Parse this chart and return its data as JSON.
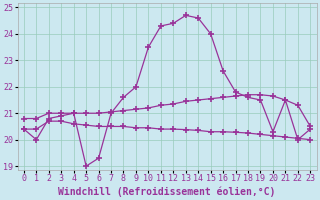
{
  "xlabel": "Windchill (Refroidissement éolien,°C)",
  "background_color": "#cce8f0",
  "grid_color": "#99ccbb",
  "line_color": "#993399",
  "xlim": [
    -0.5,
    23.5
  ],
  "ylim": [
    18.85,
    25.15
  ],
  "yticks": [
    19,
    20,
    21,
    22,
    23,
    24,
    25
  ],
  "xticks": [
    0,
    1,
    2,
    3,
    4,
    5,
    6,
    7,
    8,
    9,
    10,
    11,
    12,
    13,
    14,
    15,
    16,
    17,
    18,
    19,
    20,
    21,
    22,
    23
  ],
  "series1_x": [
    0,
    1,
    2,
    3,
    4,
    5,
    6,
    7,
    8,
    9,
    10,
    11,
    12,
    13,
    14,
    15,
    16,
    17,
    18,
    19,
    20,
    21,
    22,
    23
  ],
  "series1_y": [
    20.4,
    20.0,
    20.8,
    20.9,
    21.0,
    19.0,
    19.3,
    21.0,
    21.6,
    22.0,
    23.5,
    24.3,
    24.4,
    24.7,
    24.6,
    24.0,
    22.6,
    21.8,
    21.6,
    21.5,
    20.3,
    21.5,
    20.0,
    20.4
  ],
  "series2_x": [
    0,
    1,
    2,
    3,
    4,
    5,
    6,
    7,
    8,
    9,
    10,
    11,
    12,
    13,
    14,
    15,
    16,
    17,
    18,
    19,
    20,
    21,
    22,
    23
  ],
  "series2_y": [
    20.8,
    20.8,
    21.0,
    21.0,
    21.0,
    21.0,
    21.0,
    21.05,
    21.1,
    21.15,
    21.2,
    21.3,
    21.35,
    21.45,
    21.5,
    21.55,
    21.6,
    21.65,
    21.7,
    21.7,
    21.65,
    21.5,
    21.3,
    20.5
  ],
  "series3_x": [
    0,
    1,
    2,
    3,
    4,
    5,
    6,
    7,
    8,
    9,
    10,
    11,
    12,
    13,
    14,
    15,
    16,
    17,
    18,
    19,
    20,
    21,
    22,
    23
  ],
  "series3_y": [
    20.4,
    20.4,
    20.7,
    20.7,
    20.6,
    20.55,
    20.5,
    20.5,
    20.5,
    20.45,
    20.45,
    20.4,
    20.4,
    20.38,
    20.35,
    20.3,
    20.3,
    20.28,
    20.25,
    20.2,
    20.15,
    20.1,
    20.05,
    20.0
  ],
  "marker": "+",
  "markersize": 4,
  "linewidth": 0.9,
  "xlabel_fontsize": 7,
  "tick_fontsize": 6
}
